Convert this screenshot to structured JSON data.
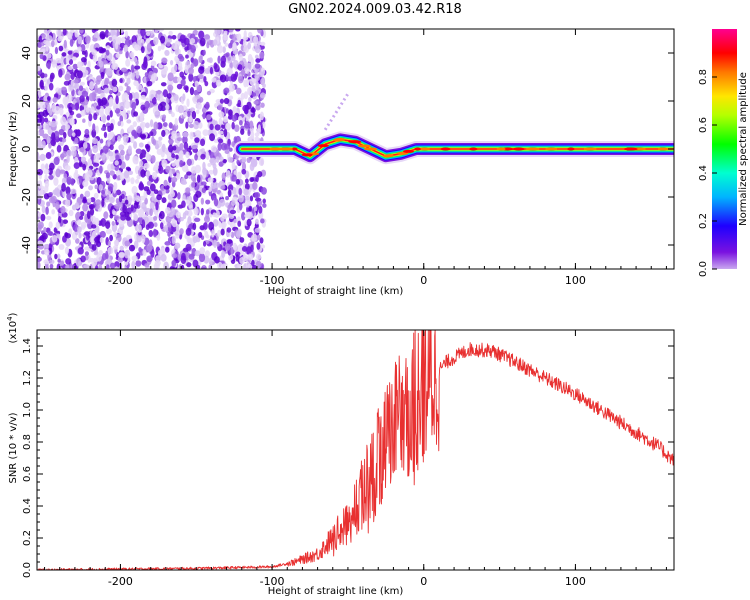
{
  "title": "GN02.2024.009.03.42.R18",
  "chart_data": [
    {
      "type": "heatmap",
      "xlabel": "Height of straight line (km)",
      "ylabel": "Frequency (Hz)",
      "xlim": [
        -255,
        165
      ],
      "ylim": [
        -50,
        50
      ],
      "xticks": [
        -200,
        -100,
        0,
        100
      ],
      "yticks": [
        -40,
        -20,
        0,
        20,
        40
      ],
      "colorbar": {
        "label": "Normalized spectral amplitude",
        "range": [
          0.0,
          1.0
        ],
        "ticks": [
          "0.0",
          "0.2",
          "0.4",
          "0.6",
          "0.8"
        ],
        "colormap": "rainbow (purple-blue-cyan-green-yellow-red-magenta)"
      },
      "ridge_frequency": [
        {
          "x": -120,
          "y": 0
        },
        {
          "x": -100,
          "y": 0
        },
        {
          "x": -85,
          "y": 0
        },
        {
          "x": -75,
          "y": -3
        },
        {
          "x": -65,
          "y": 2
        },
        {
          "x": -55,
          "y": 4
        },
        {
          "x": -45,
          "y": 3
        },
        {
          "x": -35,
          "y": 0
        },
        {
          "x": -25,
          "y": -3
        },
        {
          "x": -15,
          "y": -2
        },
        {
          "x": -5,
          "y": 0
        },
        {
          "x": 50,
          "y": 0
        },
        {
          "x": 165,
          "y": 0
        }
      ],
      "noise_region_x": [
        -255,
        -105
      ],
      "grid": false
    },
    {
      "type": "line",
      "xlabel": "Height of straight line (km)",
      "ylabel": "SNR (10 * v/v)",
      "y_multiplier": "(x10",
      "y_multiplier_exp": "4",
      "y_multiplier_close": ")",
      "xlim": [
        -255,
        165
      ],
      "ylim": [
        0,
        1.5
      ],
      "xticks": [
        -200,
        -100,
        0,
        100
      ],
      "yticks": [
        "0.0",
        "0.2",
        "0.4",
        "0.6",
        "0.8",
        "1.0",
        "1.2",
        "1.4"
      ],
      "series_color": "#e83030",
      "envelope": [
        {
          "x": -255,
          "y": 0.0
        },
        {
          "x": -150,
          "y": 0.01
        },
        {
          "x": -100,
          "y": 0.02
        },
        {
          "x": -85,
          "y": 0.05
        },
        {
          "x": -70,
          "y": 0.1
        },
        {
          "x": -55,
          "y": 0.25
        },
        {
          "x": -45,
          "y": 0.4
        },
        {
          "x": -35,
          "y": 0.6
        },
        {
          "x": -25,
          "y": 0.8
        },
        {
          "x": -15,
          "y": 0.95
        },
        {
          "x": 0,
          "y": 1.15
        },
        {
          "x": 15,
          "y": 1.3
        },
        {
          "x": 30,
          "y": 1.38
        },
        {
          "x": 45,
          "y": 1.37
        },
        {
          "x": 60,
          "y": 1.3
        },
        {
          "x": 80,
          "y": 1.2
        },
        {
          "x": 100,
          "y": 1.1
        },
        {
          "x": 120,
          "y": 0.98
        },
        {
          "x": 140,
          "y": 0.86
        },
        {
          "x": 155,
          "y": 0.77
        },
        {
          "x": 165,
          "y": 0.68
        }
      ],
      "grid": false
    }
  ]
}
